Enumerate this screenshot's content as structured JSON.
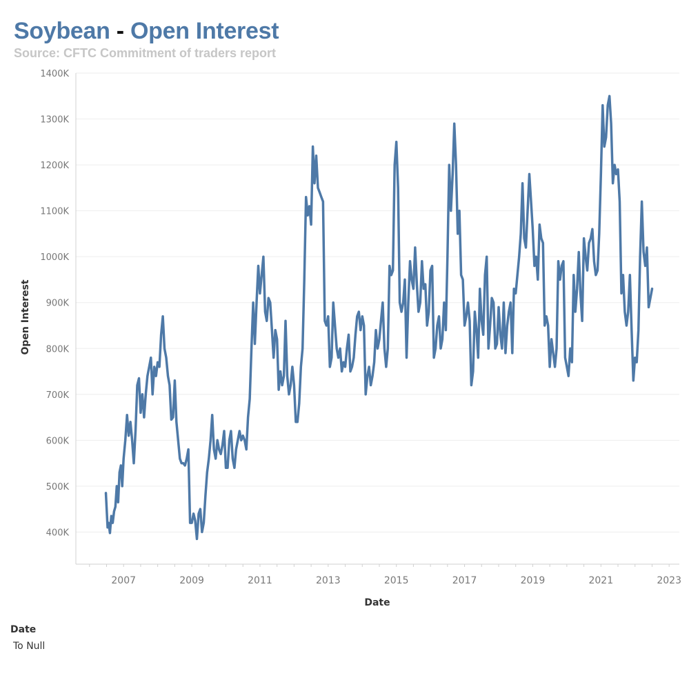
{
  "title": {
    "part1": "Soybean",
    "separator": "-",
    "part2": "Open Interest"
  },
  "subtitle": "Source: CFTC Commitment of traders report",
  "filter": {
    "title": "Date",
    "value": "To Null"
  },
  "colors": {
    "line": "#4e79a7",
    "grid": "#ededed",
    "axis": "#d0d0d0",
    "tick_text": "#777777",
    "title_text": "#333333"
  },
  "chart_data": {
    "type": "line",
    "title": "Soybean - Open Interest",
    "xlabel": "Date",
    "ylabel": "Open Interest",
    "xlim": [
      2005.6,
      2023.3
    ],
    "ylim": [
      330000,
      1400000
    ],
    "grid": true,
    "x_ticks": [
      2007,
      2009,
      2011,
      2013,
      2015,
      2017,
      2019,
      2021,
      2023
    ],
    "x_tick_labels": [
      "2007",
      "2009",
      "2011",
      "2013",
      "2015",
      "2017",
      "2019",
      "2021",
      "2023"
    ],
    "y_ticks": [
      400000,
      500000,
      600000,
      700000,
      800000,
      900000,
      1000000,
      1100000,
      1200000,
      1300000,
      1400000
    ],
    "y_tick_labels": [
      "400K",
      "500K",
      "600K",
      "700K",
      "800K",
      "900K",
      "1000K",
      "1100K",
      "1200K",
      "1300K",
      "1400K"
    ],
    "series": [
      {
        "name": "Open Interest",
        "x": [
          2006.48,
          2006.53,
          2006.56,
          2006.6,
          2006.64,
          2006.68,
          2006.72,
          2006.76,
          2006.8,
          2006.84,
          2006.88,
          2006.92,
          2006.96,
          2007.0,
          2007.05,
          2007.1,
          2007.15,
          2007.2,
          2007.25,
          2007.3,
          2007.35,
          2007.4,
          2007.45,
          2007.5,
          2007.55,
          2007.6,
          2007.65,
          2007.7,
          2007.75,
          2007.8,
          2007.85,
          2007.9,
          2007.95,
          2008.0,
          2008.05,
          2008.1,
          2008.15,
          2008.2,
          2008.25,
          2008.3,
          2008.35,
          2008.4,
          2008.45,
          2008.5,
          2008.55,
          2008.6,
          2008.65,
          2008.7,
          2008.75,
          2008.8,
          2008.85,
          2008.9,
          2008.95,
          2009.0,
          2009.05,
          2009.1,
          2009.15,
          2009.2,
          2009.25,
          2009.3,
          2009.35,
          2009.4,
          2009.45,
          2009.5,
          2009.55,
          2009.6,
          2009.65,
          2009.7,
          2009.75,
          2009.8,
          2009.85,
          2009.9,
          2009.95,
          2010.0,
          2010.05,
          2010.1,
          2010.15,
          2010.2,
          2010.25,
          2010.3,
          2010.35,
          2010.4,
          2010.45,
          2010.5,
          2010.55,
          2010.6,
          2010.65,
          2010.7,
          2010.75,
          2010.8,
          2010.85,
          2010.9,
          2010.95,
          2011.0,
          2011.05,
          2011.1,
          2011.15,
          2011.2,
          2011.25,
          2011.3,
          2011.35,
          2011.4,
          2011.45,
          2011.5,
          2011.55,
          2011.6,
          2011.65,
          2011.7,
          2011.75,
          2011.8,
          2011.85,
          2011.9,
          2011.95,
          2012.0,
          2012.05,
          2012.1,
          2012.15,
          2012.2,
          2012.25,
          2012.3,
          2012.35,
          2012.4,
          2012.45,
          2012.5,
          2012.55,
          2012.6,
          2012.65,
          2012.7,
          2012.75,
          2012.8,
          2012.85,
          2012.9,
          2012.95,
          2013.0,
          2013.05,
          2013.1,
          2013.15,
          2013.2,
          2013.25,
          2013.3,
          2013.35,
          2013.4,
          2013.45,
          2013.5,
          2013.55,
          2013.6,
          2013.65,
          2013.7,
          2013.75,
          2013.8,
          2013.85,
          2013.9,
          2013.95,
          2014.0,
          2014.05,
          2014.1,
          2014.15,
          2014.2,
          2014.25,
          2014.3,
          2014.35,
          2014.4,
          2014.45,
          2014.5,
          2014.55,
          2014.6,
          2014.65,
          2014.7,
          2014.75,
          2014.8,
          2014.85,
          2014.9,
          2014.95,
          2015.0,
          2015.05,
          2015.1,
          2015.15,
          2015.2,
          2015.25,
          2015.3,
          2015.35,
          2015.4,
          2015.45,
          2015.5,
          2015.55,
          2015.6,
          2015.65,
          2015.7,
          2015.75,
          2015.8,
          2015.85,
          2015.9,
          2015.95,
          2016.0,
          2016.05,
          2016.1,
          2016.15,
          2016.2,
          2016.25,
          2016.3,
          2016.35,
          2016.4,
          2016.45,
          2016.5,
          2016.55,
          2016.6,
          2016.65,
          2016.7,
          2016.75,
          2016.8,
          2016.85,
          2016.9,
          2016.95,
          2017.0,
          2017.05,
          2017.1,
          2017.15,
          2017.2,
          2017.25,
          2017.3,
          2017.35,
          2017.4,
          2017.45,
          2017.5,
          2017.55,
          2017.6,
          2017.65,
          2017.7,
          2017.75,
          2017.8,
          2017.85,
          2017.9,
          2017.95,
          2018.0,
          2018.05,
          2018.1,
          2018.15,
          2018.2,
          2018.25,
          2018.3,
          2018.35,
          2018.4,
          2018.45,
          2018.5,
          2018.55,
          2018.6,
          2018.65,
          2018.7,
          2018.75,
          2018.8,
          2018.85,
          2018.9,
          2018.95,
          2019.0,
          2019.05,
          2019.1,
          2019.15,
          2019.2,
          2019.25,
          2019.3,
          2019.35,
          2019.4,
          2019.45,
          2019.5,
          2019.55,
          2019.6,
          2019.65,
          2019.7,
          2019.75,
          2019.8,
          2019.85,
          2019.9,
          2019.95,
          2020.0,
          2020.05,
          2020.1,
          2020.15,
          2020.2,
          2020.25,
          2020.3,
          2020.35,
          2020.4,
          2020.45,
          2020.5,
          2020.55,
          2020.6,
          2020.65,
          2020.7,
          2020.75,
          2020.8,
          2020.85,
          2020.9,
          2020.95,
          2021.0,
          2021.05,
          2021.1,
          2021.15,
          2021.2,
          2021.25,
          2021.3,
          2021.35,
          2021.4,
          2021.45,
          2021.5,
          2021.55,
          2021.6,
          2021.65,
          2021.7,
          2021.75,
          2021.8,
          2021.85,
          2021.9,
          2021.95,
          2022.0,
          2022.05,
          2022.1,
          2022.15,
          2022.2,
          2022.25,
          2022.3,
          2022.35,
          2022.4,
          2022.45,
          2022.5
        ],
        "values": [
          485000,
          410000,
          420000,
          398000,
          435000,
          420000,
          445000,
          455000,
          500000,
          465000,
          530000,
          545000,
          500000,
          560000,
          600000,
          655000,
          610000,
          640000,
          600000,
          550000,
          620000,
          720000,
          735000,
          660000,
          700000,
          650000,
          700000,
          740000,
          760000,
          780000,
          700000,
          760000,
          740000,
          770000,
          760000,
          830000,
          870000,
          800000,
          780000,
          740000,
          720000,
          645000,
          650000,
          730000,
          640000,
          600000,
          560000,
          550000,
          550000,
          545000,
          560000,
          580000,
          420000,
          420000,
          440000,
          425000,
          385000,
          440000,
          450000,
          400000,
          420000,
          480000,
          530000,
          560000,
          600000,
          655000,
          580000,
          560000,
          600000,
          580000,
          570000,
          590000,
          620000,
          540000,
          540000,
          600000,
          620000,
          560000,
          540000,
          580000,
          600000,
          620000,
          600000,
          610000,
          600000,
          580000,
          650000,
          690000,
          800000,
          900000,
          810000,
          900000,
          980000,
          920000,
          960000,
          1000000,
          880000,
          860000,
          910000,
          900000,
          840000,
          780000,
          840000,
          820000,
          710000,
          750000,
          720000,
          740000,
          860000,
          740000,
          700000,
          720000,
          760000,
          720000,
          640000,
          640000,
          680000,
          760000,
          800000,
          950000,
          1130000,
          1090000,
          1110000,
          1070000,
          1240000,
          1160000,
          1220000,
          1150000,
          1140000,
          1130000,
          1120000,
          860000,
          850000,
          870000,
          760000,
          780000,
          900000,
          850000,
          800000,
          780000,
          800000,
          750000,
          770000,
          760000,
          800000,
          830000,
          750000,
          760000,
          780000,
          830000,
          870000,
          880000,
          840000,
          870000,
          850000,
          700000,
          740000,
          760000,
          720000,
          740000,
          770000,
          840000,
          800000,
          820000,
          860000,
          900000,
          800000,
          760000,
          800000,
          980000,
          960000,
          970000,
          1200000,
          1250000,
          1150000,
          900000,
          880000,
          900000,
          950000,
          780000,
          900000,
          990000,
          950000,
          930000,
          1020000,
          940000,
          880000,
          900000,
          990000,
          930000,
          940000,
          850000,
          880000,
          970000,
          980000,
          780000,
          800000,
          850000,
          870000,
          800000,
          820000,
          900000,
          840000,
          1000000,
          1200000,
          1100000,
          1180000,
          1290000,
          1200000,
          1050000,
          1100000,
          960000,
          950000,
          850000,
          870000,
          900000,
          860000,
          720000,
          750000,
          880000,
          840000,
          780000,
          930000,
          860000,
          830000,
          960000,
          1000000,
          800000,
          850000,
          910000,
          900000,
          800000,
          810000,
          890000,
          830000,
          800000,
          900000,
          790000,
          850000,
          880000,
          900000,
          790000,
          930000,
          920000,
          960000,
          1000000,
          1050000,
          1160000,
          1040000,
          1020000,
          1100000,
          1180000,
          1120000,
          1060000,
          980000,
          1000000,
          950000,
          1070000,
          1040000,
          1030000,
          850000,
          870000,
          850000,
          760000,
          820000,
          790000,
          760000,
          800000,
          990000,
          950000,
          980000,
          990000,
          780000,
          760000,
          740000,
          800000,
          770000,
          960000,
          880000,
          930000,
          1010000,
          920000,
          860000,
          1040000,
          1000000,
          970000,
          1030000,
          1040000,
          1060000,
          990000,
          960000,
          970000,
          1050000,
          1180000,
          1330000,
          1240000,
          1260000,
          1330000,
          1350000,
          1290000,
          1160000,
          1200000,
          1180000,
          1190000,
          1120000,
          920000,
          960000,
          880000,
          850000,
          880000,
          960000,
          840000,
          730000,
          780000,
          770000,
          840000,
          1000000,
          1120000,
          1010000,
          980000,
          1020000,
          890000,
          910000,
          930000
        ]
      }
    ]
  }
}
